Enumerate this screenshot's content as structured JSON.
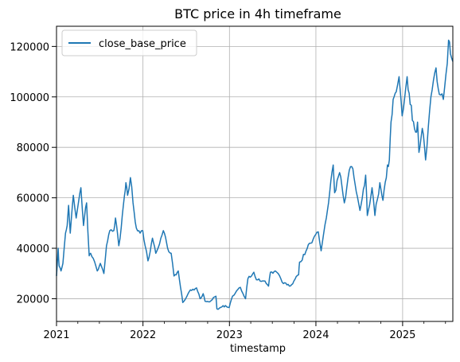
{
  "chart_data": {
    "type": "line",
    "title": "BTC price in 4h timeframe",
    "xlabel": "timestamp",
    "ylabel": "",
    "xlim": [
      "2021-01-01",
      "2025-08-01"
    ],
    "ylim": [
      11000,
      128000
    ],
    "grid": true,
    "legend_position": "top-left",
    "x_ticks": [
      {
        "value": "2021-01-01",
        "label": "2021"
      },
      {
        "value": "2022-01-01",
        "label": "2022"
      },
      {
        "value": "2023-01-01",
        "label": "2023"
      },
      {
        "value": "2024-01-01",
        "label": "2024"
      },
      {
        "value": "2025-01-01",
        "label": "2025"
      }
    ],
    "y_ticks": [
      {
        "value": 20000,
        "label": "20000"
      },
      {
        "value": 40000,
        "label": "40000"
      },
      {
        "value": 60000,
        "label": "60000"
      },
      {
        "value": 80000,
        "label": "80000"
      },
      {
        "value": 100000,
        "label": "100000"
      },
      {
        "value": 120000,
        "label": "120000"
      }
    ],
    "series": [
      {
        "name": "close_base_price",
        "color": "#1f77b4",
        "points": [
          [
            "2021-01-01",
            29000
          ],
          [
            "2021-01-08",
            40000
          ],
          [
            "2021-01-12",
            33000
          ],
          [
            "2021-01-20",
            31000
          ],
          [
            "2021-01-28",
            34000
          ],
          [
            "2021-02-08",
            46000
          ],
          [
            "2021-02-15",
            49000
          ],
          [
            "2021-02-21",
            57000
          ],
          [
            "2021-02-28",
            46000
          ],
          [
            "2021-03-13",
            61000
          ],
          [
            "2021-03-25",
            52000
          ],
          [
            "2021-04-05",
            59000
          ],
          [
            "2021-04-14",
            64000
          ],
          [
            "2021-04-25",
            49000
          ],
          [
            "2021-05-08",
            58000
          ],
          [
            "2021-05-19",
            37000
          ],
          [
            "2021-05-25",
            38000
          ],
          [
            "2021-06-05",
            36000
          ],
          [
            "2021-06-22",
            31000
          ],
          [
            "2021-07-05",
            34000
          ],
          [
            "2021-07-20",
            30000
          ],
          [
            "2021-07-31",
            41000
          ],
          [
            "2021-08-14",
            47000
          ],
          [
            "2021-08-31",
            47000
          ],
          [
            "2021-09-07",
            52000
          ],
          [
            "2021-09-21",
            41000
          ],
          [
            "2021-10-01",
            48000
          ],
          [
            "2021-10-15",
            61000
          ],
          [
            "2021-10-21",
            66000
          ],
          [
            "2021-10-28",
            61000
          ],
          [
            "2021-11-09",
            68000
          ],
          [
            "2021-11-20",
            58000
          ],
          [
            "2021-12-04",
            48000
          ],
          [
            "2021-12-20",
            46000
          ],
          [
            "2021-12-31",
            47000
          ],
          [
            "2022-01-10",
            41000
          ],
          [
            "2022-01-22",
            35000
          ],
          [
            "2022-02-10",
            44000
          ],
          [
            "2022-02-24",
            38000
          ],
          [
            "2022-03-28",
            47000
          ],
          [
            "2022-04-15",
            40000
          ],
          [
            "2022-04-30",
            38000
          ],
          [
            "2022-05-12",
            29000
          ],
          [
            "2022-05-30",
            31000
          ],
          [
            "2022-06-13",
            22000
          ],
          [
            "2022-06-18",
            18500
          ],
          [
            "2022-06-30",
            20000
          ],
          [
            "2022-07-20",
            23500
          ],
          [
            "2022-08-15",
            24300
          ],
          [
            "2022-08-30",
            20000
          ],
          [
            "2022-09-12",
            22000
          ],
          [
            "2022-09-20",
            19000
          ],
          [
            "2022-10-15",
            19200
          ],
          [
            "2022-11-05",
            21000
          ],
          [
            "2022-11-09",
            16000
          ],
          [
            "2022-11-20",
            16300
          ],
          [
            "2022-12-15",
            17300
          ],
          [
            "2022-12-31",
            16500
          ],
          [
            "2023-01-14",
            21000
          ],
          [
            "2023-01-31",
            23100
          ],
          [
            "2023-02-16",
            24500
          ],
          [
            "2023-03-10",
            20000
          ],
          [
            "2023-03-20",
            28000
          ],
          [
            "2023-04-14",
            30500
          ],
          [
            "2023-04-25",
            27500
          ],
          [
            "2023-05-31",
            27000
          ],
          [
            "2023-06-15",
            25000
          ],
          [
            "2023-06-23",
            30500
          ],
          [
            "2023-07-14",
            31000
          ],
          [
            "2023-07-31",
            29200
          ],
          [
            "2023-08-17",
            26000
          ],
          [
            "2023-09-11",
            25000
          ],
          [
            "2023-09-30",
            27000
          ],
          [
            "2023-10-20",
            29500
          ],
          [
            "2023-10-24",
            34500
          ],
          [
            "2023-11-15",
            37500
          ],
          [
            "2023-12-05",
            42000
          ],
          [
            "2023-12-20",
            43500
          ],
          [
            "2024-01-11",
            46500
          ],
          [
            "2024-01-23",
            39000
          ],
          [
            "2024-02-14",
            52000
          ],
          [
            "2024-02-28",
            62000
          ],
          [
            "2024-03-14",
            73000
          ],
          [
            "2024-03-20",
            62000
          ],
          [
            "2024-04-10",
            70000
          ],
          [
            "2024-04-30",
            58000
          ],
          [
            "2024-05-21",
            71000
          ],
          [
            "2024-06-05",
            71500
          ],
          [
            "2024-06-24",
            60500
          ],
          [
            "2024-07-05",
            55000
          ],
          [
            "2024-07-29",
            69000
          ],
          [
            "2024-08-05",
            53000
          ],
          [
            "2024-08-25",
            64000
          ],
          [
            "2024-09-06",
            53000
          ],
          [
            "2024-09-27",
            66000
          ],
          [
            "2024-10-10",
            59000
          ],
          [
            "2024-10-29",
            73000
          ],
          [
            "2024-11-06",
            75000
          ],
          [
            "2024-11-13",
            90000
          ],
          [
            "2024-11-22",
            99000
          ],
          [
            "2024-12-05",
            102000
          ],
          [
            "2024-12-17",
            108000
          ],
          [
            "2024-12-30",
            92500
          ],
          [
            "2025-01-20",
            108000
          ],
          [
            "2025-02-02",
            97000
          ],
          [
            "2025-02-25",
            86000
          ],
          [
            "2025-03-05",
            90000
          ],
          [
            "2025-03-11",
            78000
          ],
          [
            "2025-03-25",
            87500
          ],
          [
            "2025-04-08",
            75000
          ],
          [
            "2025-04-25",
            94500
          ],
          [
            "2025-05-22",
            111500
          ],
          [
            "2025-06-05",
            101000
          ],
          [
            "2025-06-22",
            99000
          ],
          [
            "2025-07-03",
            109000
          ],
          [
            "2025-07-14",
            122500
          ],
          [
            "2025-07-22",
            117000
          ],
          [
            "2025-08-01",
            114000
          ]
        ]
      }
    ]
  }
}
